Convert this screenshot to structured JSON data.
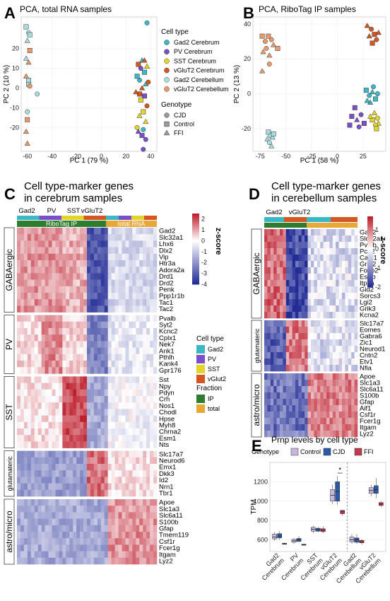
{
  "colors": {
    "Gad2 Cerebrum": "#3bb8c4",
    "PV Cerebrum": "#7a4fc9",
    "SST Cerebrum": "#e3d42a",
    "vGluT2 Cerebrum": "#d45622",
    "Gad2 Cerebellum": "#a8dde0",
    "vGluT2 Cerebellum": "#e89a6a",
    "IP": "#2e7d2e",
    "total": "#e8a838",
    "Control": "#c7b6e0",
    "CJD": "#2a5aa6",
    "FFI": "#c0394f"
  },
  "panels": {
    "A": {
      "letter": "A",
      "title": "PCA, total RNA samples"
    },
    "B": {
      "letter": "B",
      "title": "PCA, RiboTag IP samples"
    },
    "C": {
      "letter": "C",
      "title_line1": "Cell type-marker genes",
      "title_line2": "in cerebrum samples"
    },
    "D": {
      "letter": "D",
      "title_line1": "Cell type-marker genes",
      "title_line2": "in cerebellum samples"
    },
    "E": {
      "letter": "E",
      "title": "Prnp levels by cell type"
    }
  },
  "legends": {
    "celltype_title": "Cell type",
    "celltype_items": [
      "Gad2 Cerebrum",
      "PV Cerebrum",
      "SST Cerebrum",
      "vGluT2 Cerebrum",
      "Gad2 Cerebellum",
      "vGluT2 Cerebellum"
    ],
    "genotype_title": "Genotype",
    "genotype_items": [
      "CJD",
      "Control",
      "FFI"
    ],
    "heat_celltype_title": "Cell type",
    "heat_celltype_items": [
      "Gad2",
      "PV",
      "SST",
      "vGlut2"
    ],
    "fraction_title": "Fraction",
    "fraction_items": [
      "IP",
      "total"
    ],
    "zscore_title": "z-score",
    "e_genotype_title": "Genotype",
    "e_genotype_items": [
      "Control",
      "CJD",
      "FFI"
    ]
  },
  "chart_data": [
    {
      "panel": "A",
      "type": "scatter",
      "title": "PCA, total RNA samples",
      "xlabel": "PC 1 (79 %)",
      "ylabel": "PC 2 (10 %)",
      "xlim": [
        -65,
        45
      ],
      "ylim": [
        -32,
        36
      ],
      "xticks": [
        -60,
        -40,
        -20,
        0,
        20,
        40
      ],
      "yticks": [
        -20,
        -10,
        0,
        10,
        20
      ],
      "points": [
        {
          "x": -61,
          "y": 31,
          "c": "Gad2 Cerebellum",
          "g": "Control"
        },
        {
          "x": -59,
          "y": 28,
          "c": "Gad2 Cerebellum",
          "g": "CJD"
        },
        {
          "x": -60,
          "y": 24,
          "c": "Gad2 Cerebellum",
          "g": "FFI"
        },
        {
          "x": -58,
          "y": 27,
          "c": "Gad2 Cerebellum",
          "g": "Control"
        },
        {
          "x": -61,
          "y": 15,
          "c": "Gad2 Cerebellum",
          "g": "FFI"
        },
        {
          "x": -59,
          "y": 2,
          "c": "Gad2 Cerebellum",
          "g": "Control"
        },
        {
          "x": -60,
          "y": -12,
          "c": "Gad2 Cerebellum",
          "g": "CJD"
        },
        {
          "x": -59,
          "y": 4,
          "c": "Gad2 Cerebellum",
          "g": "Control"
        },
        {
          "x": -52,
          "y": -3,
          "c": "Gad2 Cerebellum",
          "g": "CJD"
        },
        {
          "x": -58,
          "y": 19,
          "c": "vGluT2 Cerebellum",
          "g": "Control"
        },
        {
          "x": -59,
          "y": 13,
          "c": "vGluT2 Cerebellum",
          "g": "FFI"
        },
        {
          "x": -61,
          "y": 6,
          "c": "vGluT2 Cerebellum",
          "g": "FFI"
        },
        {
          "x": -58,
          "y": 1,
          "c": "vGluT2 Cerebellum",
          "g": "CJD"
        },
        {
          "x": -60,
          "y": -16,
          "c": "vGluT2 Cerebellum",
          "g": "Control"
        },
        {
          "x": -61,
          "y": -22,
          "c": "vGluT2 Cerebellum",
          "g": "FFI"
        },
        {
          "x": -60,
          "y": -28,
          "c": "vGluT2 Cerebellum",
          "g": "FFI"
        },
        {
          "x": 37,
          "y": 33,
          "c": "Gad2 Cerebrum",
          "g": "CJD"
        },
        {
          "x": 33,
          "y": 14,
          "c": "Gad2 Cerebrum",
          "g": "FFI"
        },
        {
          "x": 35,
          "y": 8,
          "c": "Gad2 Cerebrum",
          "g": "Control"
        },
        {
          "x": 31,
          "y": 4,
          "c": "Gad2 Cerebrum",
          "g": "CJD"
        },
        {
          "x": 36,
          "y": 2,
          "c": "Gad2 Cerebrum",
          "g": "FFI"
        },
        {
          "x": 29,
          "y": 6,
          "c": "Gad2 Cerebrum",
          "g": "Control"
        },
        {
          "x": 34,
          "y": -21,
          "c": "Gad2 Cerebrum",
          "g": "CJD"
        },
        {
          "x": 32,
          "y": 10,
          "c": "PV Cerebrum",
          "g": "CJD"
        },
        {
          "x": 35,
          "y": -4,
          "c": "PV Cerebrum",
          "g": "Control"
        },
        {
          "x": 30,
          "y": -22,
          "c": "PV Cerebrum",
          "g": "FFI"
        },
        {
          "x": 33,
          "y": -24,
          "c": "PV Cerebrum",
          "g": "Control"
        },
        {
          "x": 36,
          "y": -26,
          "c": "PV Cerebrum",
          "g": "CJD"
        },
        {
          "x": 34,
          "y": -31,
          "c": "PV Cerebrum",
          "g": "CJD"
        },
        {
          "x": 31,
          "y": -14,
          "c": "SST Cerebrum",
          "g": "FFI"
        },
        {
          "x": 34,
          "y": -12,
          "c": "SST Cerebrum",
          "g": "Control"
        },
        {
          "x": 29,
          "y": -20,
          "c": "SST Cerebrum",
          "g": "CJD"
        },
        {
          "x": 36,
          "y": -17,
          "c": "SST Cerebrum",
          "g": "FFI"
        },
        {
          "x": 32,
          "y": -6,
          "c": "SST Cerebrum",
          "g": "Control"
        },
        {
          "x": 37,
          "y": 11,
          "c": "SST Cerebrum",
          "g": "FFI"
        },
        {
          "x": 30,
          "y": 12,
          "c": "vGluT2 Cerebrum",
          "g": "Control"
        },
        {
          "x": 35,
          "y": 14,
          "c": "vGluT2 Cerebrum",
          "g": "FFI"
        },
        {
          "x": 33,
          "y": 0,
          "c": "vGluT2 Cerebrum",
          "g": "FFI"
        },
        {
          "x": 38,
          "y": 3,
          "c": "vGluT2 Cerebrum",
          "g": "CJD"
        },
        {
          "x": 31,
          "y": -3,
          "c": "vGluT2 Cerebrum",
          "g": "Control"
        },
        {
          "x": 37,
          "y": -9,
          "c": "vGluT2 Cerebrum",
          "g": "CJD"
        },
        {
          "x": 28,
          "y": -2,
          "c": "vGluT2 Cerebrum",
          "g": "FFI"
        }
      ]
    },
    {
      "panel": "B",
      "type": "scatter",
      "title": "PCA, RiboTag IP samples",
      "xlabel": "PC 1 (58 %)",
      "ylabel": "PC 2 (13 %)",
      "xlim": [
        -82,
        47
      ],
      "ylim": [
        -33,
        44
      ],
      "xticks": [
        -75,
        -50,
        -25,
        0,
        25
      ],
      "yticks": [
        -20,
        0,
        20,
        40
      ],
      "points": [
        {
          "x": -73,
          "y": 33,
          "c": "vGluT2 Cerebellum",
          "g": "Control"
        },
        {
          "x": -70,
          "y": 30,
          "c": "vGluT2 Cerebellum",
          "g": "CJD"
        },
        {
          "x": -67,
          "y": 33,
          "c": "vGluT2 Cerebellum",
          "g": "Control"
        },
        {
          "x": -64,
          "y": 31,
          "c": "vGluT2 Cerebellum",
          "g": "CJD"
        },
        {
          "x": -62,
          "y": 28,
          "c": "vGluT2 Cerebellum",
          "g": "FFI"
        },
        {
          "x": -69,
          "y": 26,
          "c": "vGluT2 Cerebellum",
          "g": "CJD"
        },
        {
          "x": -72,
          "y": 24,
          "c": "vGluT2 Cerebellum",
          "g": "FFI"
        },
        {
          "x": -66,
          "y": 22,
          "c": "vGluT2 Cerebellum",
          "g": "FFI"
        },
        {
          "x": -58,
          "y": 26,
          "c": "vGluT2 Cerebellum",
          "g": "Control"
        },
        {
          "x": -73,
          "y": 13,
          "c": "vGluT2 Cerebellum",
          "g": "FFI"
        },
        {
          "x": -66,
          "y": 17,
          "c": "vGluT2 Cerebellum",
          "g": "CJD"
        },
        {
          "x": -67,
          "y": -22,
          "c": "Gad2 Cerebellum",
          "g": "Control"
        },
        {
          "x": -65,
          "y": -24,
          "c": "Gad2 Cerebellum",
          "g": "CJD"
        },
        {
          "x": -68,
          "y": -26,
          "c": "Gad2 Cerebellum",
          "g": "FFI"
        },
        {
          "x": -63,
          "y": -25,
          "c": "Gad2 Cerebellum",
          "g": "FFI"
        },
        {
          "x": -66,
          "y": -28,
          "c": "Gad2 Cerebellum",
          "g": "CJD"
        },
        {
          "x": -62,
          "y": -23,
          "c": "Gad2 Cerebellum",
          "g": "Control"
        },
        {
          "x": -64,
          "y": -30,
          "c": "Gad2 Cerebellum",
          "g": "FFI"
        },
        {
          "x": 29,
          "y": 39,
          "c": "vGluT2 Cerebrum",
          "g": "FFI"
        },
        {
          "x": 33,
          "y": 37,
          "c": "vGluT2 Cerebrum",
          "g": "CJD"
        },
        {
          "x": 36,
          "y": 34,
          "c": "vGluT2 Cerebrum",
          "g": "Control"
        },
        {
          "x": 31,
          "y": 33,
          "c": "vGluT2 Cerebrum",
          "g": "FFI"
        },
        {
          "x": 38,
          "y": 31,
          "c": "vGluT2 Cerebrum",
          "g": "CJD"
        },
        {
          "x": 34,
          "y": 29,
          "c": "vGluT2 Cerebrum",
          "g": "Control"
        },
        {
          "x": 40,
          "y": 35,
          "c": "vGluT2 Cerebrum",
          "g": "FFI"
        },
        {
          "x": 28,
          "y": 2,
          "c": "Gad2 Cerebrum",
          "g": "Control"
        },
        {
          "x": 31,
          "y": -1,
          "c": "Gad2 Cerebrum",
          "g": "CJD"
        },
        {
          "x": 34,
          "y": 1,
          "c": "Gad2 Cerebrum",
          "g": "FFI"
        },
        {
          "x": 37,
          "y": -3,
          "c": "Gad2 Cerebrum",
          "g": "Control"
        },
        {
          "x": 32,
          "y": -5,
          "c": "Gad2 Cerebrum",
          "g": "FFI"
        },
        {
          "x": 39,
          "y": 0,
          "c": "Gad2 Cerebrum",
          "g": "CJD"
        },
        {
          "x": 29,
          "y": -4,
          "c": "Gad2 Cerebrum",
          "g": "FFI"
        },
        {
          "x": 35,
          "y": 4,
          "c": "Gad2 Cerebrum",
          "g": "CJD"
        },
        {
          "x": 17,
          "y": -8,
          "c": "PV Cerebrum",
          "g": "Control"
        },
        {
          "x": 14,
          "y": -13,
          "c": "PV Cerebrum",
          "g": "Control"
        },
        {
          "x": 19,
          "y": -15,
          "c": "PV Cerebrum",
          "g": "FFI"
        },
        {
          "x": 23,
          "y": -12,
          "c": "PV Cerebrum",
          "g": "CJD"
        },
        {
          "x": 26,
          "y": -17,
          "c": "PV Cerebrum",
          "g": "Control"
        },
        {
          "x": 21,
          "y": -19,
          "c": "PV Cerebrum",
          "g": "CJD"
        },
        {
          "x": 12,
          "y": -18,
          "c": "PV Cerebrum",
          "g": "Control"
        },
        {
          "x": 36,
          "y": -11,
          "c": "SST Cerebrum",
          "g": "FFI"
        },
        {
          "x": 39,
          "y": -14,
          "c": "SST Cerebrum",
          "g": "CJD"
        },
        {
          "x": 34,
          "y": -15,
          "c": "SST Cerebrum",
          "g": "Control"
        },
        {
          "x": 40,
          "y": -17,
          "c": "SST Cerebrum",
          "g": "FFI"
        },
        {
          "x": 37,
          "y": -18,
          "c": "SST Cerebrum",
          "g": "CJD"
        },
        {
          "x": 32,
          "y": -13,
          "c": "SST Cerebrum",
          "g": "FFI"
        },
        {
          "x": 38,
          "y": -20,
          "c": "SST Cerebrum",
          "g": "Control"
        }
      ]
    },
    {
      "panel": "C",
      "type": "heatmap",
      "top_groups": [
        "Gad2",
        "PV",
        "SST",
        "vGluT2"
      ],
      "fraction_bands": [
        "RiboTag IP",
        "total RNA"
      ],
      "colorbar_ticks": [
        2,
        1,
        0,
        -1,
        -2,
        -3,
        -4
      ],
      "colorbar_range": [
        -4,
        2.5
      ],
      "groups": [
        {
          "name": "GABAergic",
          "genes": [
            "Gad2",
            "Slc32a1",
            "Lhx6",
            "Dlx2",
            "Vip",
            "Htr3a",
            "Adora2a",
            "Drd1",
            "Drd2",
            "Penk",
            "Ppp1r1b",
            "Tac1",
            "Tac2"
          ]
        },
        {
          "name": "PV",
          "genes": [
            "Pvalb",
            "Syt2",
            "Kcnc2",
            "Cplx1",
            "Nek7",
            "Ank1",
            "Pthlh",
            "Kank4",
            "Gpr176"
          ]
        },
        {
          "name": "SST",
          "genes": [
            "Sst",
            "Npy",
            "Pdyn",
            "Crh",
            "Nos1",
            "Chodl",
            "Hpse",
            "Myh8",
            "Chrna2",
            "Esm1",
            "Nts"
          ]
        },
        {
          "name": "glutamateric",
          "genes": [
            "Slc17a7",
            "Neurod6",
            "Emx1",
            "Dkk3",
            "Id2",
            "Nrn1",
            "Tbr1"
          ]
        },
        {
          "name": "astro/micro",
          "genes": [
            "Apoe",
            "Slc1a3",
            "Slc6a11",
            "S100b",
            "Gfap",
            "Tmem119",
            "Csf1r",
            "Fcer1g",
            "Itgam",
            "Lyz2"
          ]
        }
      ]
    },
    {
      "panel": "D",
      "type": "heatmap",
      "top_groups": [
        "Gad2",
        "vGluT2"
      ],
      "colorbar_ticks": [
        1,
        0,
        -1,
        -2
      ],
      "colorbar_range": [
        -2,
        1.7
      ],
      "groups": [
        {
          "name": "GABAergic",
          "genes": [
            "Gad2",
            "Slc32a1",
            "Pvalb",
            "Pcp2",
            "Calb1",
            "Grid2",
            "Foxp2",
            "Esrrb",
            "Itpka",
            "Gid2",
            "Sorcs3",
            "Lgi2",
            "Grik3",
            "Kcna2"
          ]
        },
        {
          "name": "glutamateric",
          "genes": [
            "Slc17a7",
            "Eomes",
            "Gabra6",
            "Zic1",
            "Neurod1",
            "Cntn2",
            "Etv1",
            "Nfia"
          ]
        },
        {
          "name": "astro/micro",
          "genes": [
            "Apoe",
            "Slc1a3",
            "Slc6a11",
            "S100b",
            "Gfap",
            "Aif1",
            "Csf1r",
            "Fcer1g",
            "Itgam",
            "Lyz2"
          ]
        }
      ]
    },
    {
      "panel": "E",
      "type": "box",
      "title": "Prnp levels by cell type",
      "ylabel": "TPM",
      "ylim": [
        480,
        1400
      ],
      "yticks": [
        600,
        800,
        1000,
        1200
      ],
      "categories": [
        "Gad2 Cerebrum",
        "PV Cerebrum",
        "SST Cerebrum",
        "vGluT2 Cerebrum",
        "Gad2 Cerebellum",
        "vGluT2 Cerebellum"
      ],
      "category_lines": [
        [
          "Gad2",
          "Cerebrum"
        ],
        [
          "PV",
          "Cerebrum"
        ],
        [
          "SST",
          "Cerebrum"
        ],
        [
          "vGluT2",
          "Cerebrum"
        ],
        [
          "Gad2",
          "Cerebellum"
        ],
        [
          "vGluT2",
          "Cerebellum"
        ]
      ],
      "series": [
        {
          "name": "Control",
          "boxes": [
            [
              590,
              610,
              630,
              660,
              680
            ],
            [
              560,
              575,
              590,
              605,
              620
            ],
            [
              670,
              690,
              710,
              730,
              745
            ],
            [
              970,
              1000,
              1060,
              1120,
              1170
            ],
            [
              560,
              580,
              600,
              630,
              660
            ],
            [
              1050,
              1080,
              1110,
              1140,
              1170
            ]
          ]
        },
        {
          "name": "CJD",
          "boxes": [
            [
              600,
              620,
              640,
              665,
              690
            ],
            [
              570,
              585,
              600,
              615,
              640
            ],
            [
              680,
              690,
              705,
              720,
              735
            ],
            [
              960,
              1000,
              1100,
              1200,
              1260
            ],
            [
              560,
              575,
              605,
              620,
              660
            ],
            [
              1030,
              1080,
              1120,
              1160,
              1240
            ]
          ]
        },
        {
          "name": "FFI",
          "boxes": [
            [
              550,
              555,
              560,
              565,
              570
            ],
            [
              540,
              545,
              550,
              555,
              560
            ],
            [
              670,
              685,
              700,
              715,
              740
            ],
            [
              850,
              870,
              890,
              905,
              910
            ],
            [
              550,
              570,
              580,
              595,
              610
            ],
            [
              940,
              955,
              970,
              985,
              1000
            ]
          ]
        }
      ],
      "annotations": [
        {
          "text": "*",
          "between": [
            "vGluT2 Cerebrum CJD",
            "vGluT2 Cerebrum FFI"
          ]
        }
      ]
    }
  ]
}
